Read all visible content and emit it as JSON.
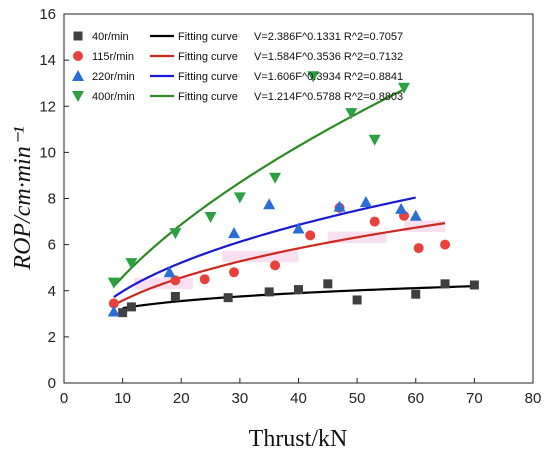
{
  "chart_data": {
    "type": "scatter",
    "xlabel": "Thrust/kN",
    "ylabel": "ROP/cm·min⁻¹",
    "xlim": [
      0,
      80
    ],
    "ylim": [
      0,
      16
    ],
    "xticks": [
      0,
      10,
      20,
      30,
      40,
      50,
      60,
      70,
      80
    ],
    "yticks": [
      0,
      2,
      4,
      6,
      8,
      10,
      12,
      14,
      16
    ],
    "grid": false,
    "legend_position": "top-left",
    "series": [
      {
        "name": "40r/min",
        "marker": "square",
        "color": "#404040",
        "points": [
          [
            10,
            3.05
          ],
          [
            11.5,
            3.3
          ],
          [
            19,
            3.75
          ],
          [
            28,
            3.7
          ],
          [
            35,
            3.95
          ],
          [
            40,
            4.05
          ],
          [
            45,
            4.3
          ],
          [
            50,
            3.6
          ],
          [
            60,
            3.85
          ],
          [
            65,
            4.3
          ],
          [
            70,
            4.25
          ]
        ],
        "fit": {
          "label": "Fitting curve",
          "equation": "V=2.386F^0.1331 R^2=0.7057",
          "a": 2.386,
          "b": 0.1331,
          "color": "#000000",
          "range": [
            10,
            70
          ]
        }
      },
      {
        "name": "115r/min",
        "marker": "circle",
        "color": "#e8413c",
        "points": [
          [
            8.5,
            3.45
          ],
          [
            19,
            4.45
          ],
          [
            24,
            4.5
          ],
          [
            29,
            4.8
          ],
          [
            36,
            5.1
          ],
          [
            42,
            6.4
          ],
          [
            47,
            7.6
          ],
          [
            53,
            7.0
          ],
          [
            58,
            7.25
          ],
          [
            60.5,
            5.85
          ],
          [
            65,
            6.0
          ]
        ],
        "fit": {
          "label": "Fitting curve",
          "equation": "V=1.584F^0.3536 R^2=0.7132",
          "a": 1.584,
          "b": 0.3536,
          "color": "#cc2a1f",
          "range": [
            8.5,
            65
          ]
        }
      },
      {
        "name": "220r/min",
        "marker": "triangle-up",
        "color": "#2b6fd6",
        "points": [
          [
            8.5,
            3.1
          ],
          [
            18,
            4.8
          ],
          [
            29,
            6.5
          ],
          [
            35,
            7.75
          ],
          [
            40,
            6.7
          ],
          [
            47,
            7.65
          ],
          [
            51.5,
            7.85
          ],
          [
            57.5,
            7.55
          ],
          [
            60,
            7.25
          ]
        ],
        "fit": {
          "label": "Fitting curve",
          "equation": "V=1.606F^0.3934 R^2=0.8841",
          "a": 1.606,
          "b": 0.3934,
          "color": "#1a1ad0",
          "range": [
            8.5,
            60
          ]
        }
      },
      {
        "name": "400r/min",
        "marker": "triangle-down",
        "color": "#2ea043",
        "points": [
          [
            8.5,
            4.35
          ],
          [
            11.5,
            5.2
          ],
          [
            19,
            6.5
          ],
          [
            25,
            7.2
          ],
          [
            30,
            8.05
          ],
          [
            36,
            8.9
          ],
          [
            42.5,
            13.3
          ],
          [
            49,
            11.7
          ],
          [
            53,
            10.55
          ],
          [
            58,
            12.8
          ]
        ],
        "fit": {
          "label": "Fitting curve",
          "equation": "V=1.214F^0.5788 R^2=0.8803",
          "a": 1.214,
          "b": 0.5788,
          "color": "#2e8b24",
          "range": [
            8.5,
            58
          ]
        }
      }
    ]
  }
}
